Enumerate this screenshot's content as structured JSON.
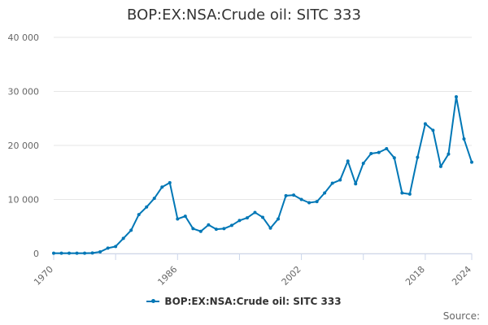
{
  "title": "BOP:EX:NSA:Crude oil: SITC 333",
  "legend_label": "BOP:EX:NSA:Crude oil: SITC 333",
  "source_label": "Source:",
  "colors": {
    "series": "#0077b6",
    "grid": "#e6e6e6",
    "axis": "#ccd6eb",
    "text": "#666666"
  },
  "chart_data": {
    "type": "line",
    "title": "BOP:EX:NSA:Crude oil: SITC 333",
    "xlabel": "",
    "ylabel": "",
    "ylim": [
      0,
      40000
    ],
    "xlim": [
      1970,
      2024
    ],
    "grid": true,
    "legend_position": "bottom",
    "y_ticks": [
      "0",
      "10 000",
      "20 000",
      "30 000",
      "40 000"
    ],
    "y_tick_values": [
      0,
      10000,
      20000,
      30000,
      40000
    ],
    "x_ticks": [
      "1970",
      "1986",
      "2002",
      "2018",
      "2024"
    ],
    "x_tick_values": [
      1970,
      1986,
      2002,
      2018,
      2024
    ],
    "series": [
      {
        "name": "BOP:EX:NSA:Crude oil: SITC 333",
        "x": [
          1970,
          1971,
          1972,
          1973,
          1974,
          1975,
          1976,
          1977,
          1978,
          1979,
          1980,
          1981,
          1982,
          1983,
          1984,
          1985,
          1986,
          1987,
          1988,
          1989,
          1990,
          1991,
          1992,
          1993,
          1994,
          1995,
          1996,
          1997,
          1998,
          1999,
          2000,
          2001,
          2002,
          2003,
          2004,
          2005,
          2006,
          2007,
          2008,
          2009,
          2010,
          2011,
          2012,
          2013,
          2014,
          2015,
          2016,
          2017,
          2018,
          2019,
          2020,
          2021,
          2022,
          2023,
          2024
        ],
        "values": [
          50,
          50,
          50,
          50,
          50,
          100,
          300,
          1000,
          1300,
          2800,
          4300,
          7200,
          8600,
          10200,
          12300,
          13100,
          6400,
          6900,
          4600,
          4100,
          5300,
          4500,
          4600,
          5200,
          6100,
          6600,
          7600,
          6700,
          4700,
          6400,
          10700,
          10800,
          10000,
          9400,
          9600,
          11200,
          13000,
          13600,
          17100,
          12900,
          16700,
          18500,
          18700,
          19400,
          17700,
          11200,
          11000,
          17800,
          24000,
          22800,
          16100,
          18400,
          29000,
          21200,
          16900
        ]
      }
    ]
  }
}
